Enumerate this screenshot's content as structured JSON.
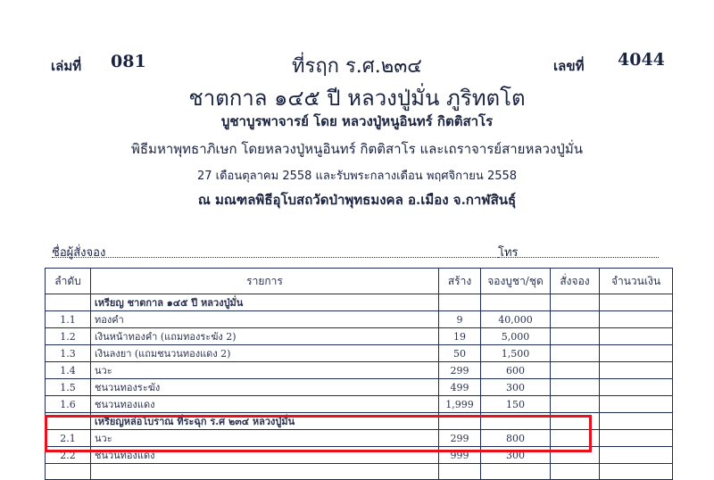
{
  "book_label": "เล่มที่",
  "book_no": "081",
  "no_label": "เลขที่",
  "no": "4044",
  "title1": "ที่รฤก ร.ศ.๒๓๔",
  "title2": "ชาตกาล ๑๔๕ ปี หลวงปู่มั่น ภูริทตโต",
  "line3": "บูชาบูรพาจารย์ โดย หลวงปู่หนูอินทร์ กิตติสาโร",
  "line4": "พิธีมหาพุทธาภิเษก โดยหลวงปู่หนูอินทร์ กิตติสาโร และเถราจารย์สายหลวงปู่มั่น",
  "line5": "27 เดือนตุลาคม 2558 และรับพระกลางเดือน พฤศจิกายน 2558",
  "line6": "ณ มณฑลพิธีอุโบสถวัดป่าพุทธมงคล อ.เมือง จ.กาฬสินธุ์",
  "name_label": "ชื่อผู้สั่งจอง",
  "phone_label": "โทร",
  "headers": [
    "ลำดับ",
    "รายการ",
    "สร้าง",
    "จองบูชา/ชุด",
    "สั่งจอง",
    "จำนวนเงิน"
  ],
  "rows": [
    {
      "no": "",
      "item": "เหรียญ ชาตกาล ๑๔๕ ปี หลวงปู่มั่น",
      "made": "",
      "price": ""
    },
    {
      "no": "1.1",
      "item": "ทองคำ",
      "made": "9",
      "price": "40,000"
    },
    {
      "no": "1.2",
      "item": "เงินหน้าทองคำ (แถมทองระฆัง 2)",
      "made": "19",
      "price": "5,000"
    },
    {
      "no": "1.3",
      "item": "เงินลงยา (แถมชนวนทองแดง 2)",
      "made": "50",
      "price": "1,500"
    },
    {
      "no": "1.4",
      "item": "นวะ",
      "made": "299",
      "price": "600"
    },
    {
      "no": "1.5",
      "item": "ชนวนทองระฆัง",
      "made": "499",
      "price": "300"
    },
    {
      "no": "1.6",
      "item": "ชนวนทองแดง",
      "made": "1,999",
      "price": "150"
    },
    {
      "no": "",
      "item": "เหรียญหล่อโบราณ ที่ระฉุก ร.ศ ๒๓๔ หลวงปู่มั่น",
      "made": "",
      "price": ""
    },
    {
      "no": "2.1",
      "item": "นวะ",
      "made": "299",
      "price": "800"
    },
    {
      "no": "2.2",
      "item": "ชนวนทองแดง",
      "made": "999",
      "price": "300"
    }
  ],
  "highlight_color": "#e8101a"
}
